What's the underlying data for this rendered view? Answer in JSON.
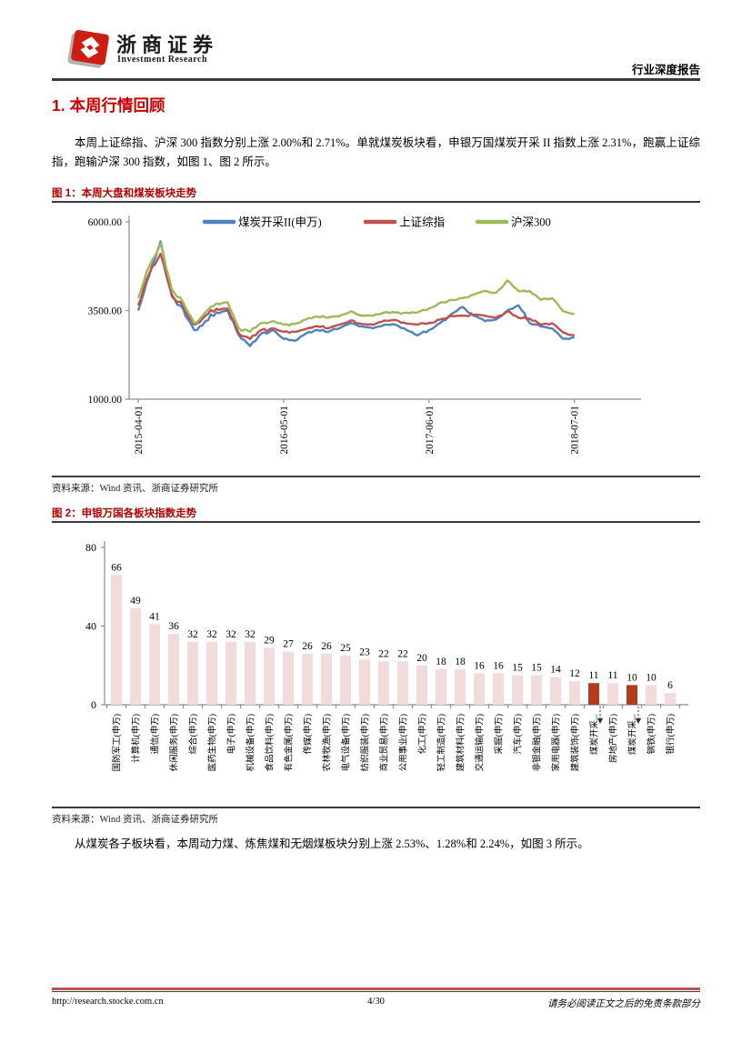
{
  "header": {
    "brand_cn": "浙商证券",
    "brand_en": "Investment Research",
    "report_type": "行业深度报告",
    "logo_color": "#ce1e14"
  },
  "section": {
    "title": "1. 本周行情回顾"
  },
  "paragraphs": {
    "p1": "本周上证综指、沪深 300 指数分别上涨 2.00%和 2.71%。单就煤炭板块看，申银万国煤炭开采 II 指数上涨 2.31%，跑赢上证综指，跑输沪深 300 指数，如图 1、图 2 所示。",
    "p2": "从煤炭各子板块看，本周动力煤、炼焦煤和无烟煤板块分别上涨 2.53%、1.28%和 2.24%，如图 3 所示。"
  },
  "figure1": {
    "caption": "图 1：本周大盘和煤炭板块走势",
    "source": "资料来源：Wind 资讯、浙商证券研究所",
    "chart_data": {
      "type": "line",
      "title": "本周大盘和煤炭板块走势",
      "ylim": [
        1000,
        6000
      ],
      "y_ticks": [
        6000,
        3500,
        1000
      ],
      "y_tick_labels": [
        "6000.00",
        "3500.00",
        "1000.00"
      ],
      "x_tick_labels": [
        "2015-04-01",
        "2016-05-01",
        "2017-06-01",
        "2018-07-01"
      ],
      "x_tick_month_index": [
        0,
        13,
        26,
        39
      ],
      "legend_position": "top",
      "grid": false,
      "x_months": [
        "2015-04",
        "2015-05",
        "2015-06",
        "2015-07",
        "2015-08",
        "2015-09",
        "2015-10",
        "2015-11",
        "2015-12",
        "2016-01",
        "2016-02",
        "2016-03",
        "2016-04",
        "2016-05",
        "2016-06",
        "2016-07",
        "2016-08",
        "2016-09",
        "2016-10",
        "2016-11",
        "2016-12",
        "2017-01",
        "2017-02",
        "2017-03",
        "2017-04",
        "2017-05",
        "2017-06",
        "2017-07",
        "2017-08",
        "2017-09",
        "2017-10",
        "2017-11",
        "2017-12",
        "2018-01",
        "2018-02",
        "2018-03",
        "2018-04",
        "2018-05",
        "2018-06",
        "2018-07"
      ],
      "series": [
        {
          "name": "煤炭开采II(申万)",
          "color": "#4F81BD",
          "values": [
            3500,
            4500,
            5450,
            3900,
            3550,
            2950,
            3200,
            3450,
            3500,
            2800,
            2500,
            2850,
            2950,
            2700,
            2650,
            2850,
            2950,
            2900,
            3000,
            3150,
            3050,
            3000,
            3100,
            3100,
            2950,
            2800,
            2950,
            3150,
            3400,
            3600,
            3350,
            3200,
            3250,
            3500,
            3650,
            3150,
            3050,
            3000,
            2700,
            2750
          ]
        },
        {
          "name": "上证综指",
          "color": "#C0504D",
          "values": [
            3650,
            4550,
            5100,
            3950,
            3650,
            3100,
            3350,
            3550,
            3550,
            2850,
            2700,
            2950,
            3000,
            2900,
            2900,
            2980,
            3060,
            3000,
            3100,
            3220,
            3120,
            3100,
            3220,
            3230,
            3130,
            3100,
            3150,
            3250,
            3350,
            3360,
            3380,
            3350,
            3300,
            3480,
            3300,
            3270,
            3100,
            3140,
            2880,
            2800
          ]
        },
        {
          "name": "沪深300",
          "color": "#9BBB59",
          "values": [
            3850,
            4750,
            5400,
            4100,
            3750,
            3150,
            3450,
            3700,
            3730,
            3000,
            2900,
            3150,
            3200,
            3100,
            3120,
            3250,
            3330,
            3300,
            3340,
            3480,
            3350,
            3350,
            3450,
            3440,
            3440,
            3450,
            3560,
            3720,
            3800,
            3850,
            3950,
            4050,
            4000,
            4350,
            4050,
            4050,
            3800,
            3850,
            3480,
            3400
          ]
        }
      ]
    }
  },
  "figure2": {
    "caption": "图 2：申银万国各板块指数走势",
    "source": "资料来源：Wind 资讯、浙商证券研究所",
    "chart_data": {
      "type": "bar",
      "ylim": [
        0,
        80
      ],
      "y_ticks": [
        80,
        40,
        0
      ],
      "y_tick_labels": [
        "80",
        "40",
        "0"
      ],
      "bar_color": "#F2DCDB",
      "highlight_color": "#B43C1C",
      "highlighted_indices": [
        25,
        27
      ],
      "categories": [
        "国防军工(申万)",
        "计算机(申万)",
        "通信(申万)",
        "休闲服务(申万)",
        "综合(申万)",
        "医药生物(申万)",
        "电子(申万)",
        "机械设备(申万)",
        "食品饮料(申万)",
        "有色金属(申万)",
        "传媒(申万)",
        "农林牧渔(申万)",
        "电气设备(申万)",
        "纺织服装(申万)",
        "商业贸易(申万)",
        "公用事业(申万)",
        "化工(申万)",
        "轻工制造(申万)",
        "建筑材料(申万)",
        "交通运输(申万)",
        "采掘(申万)",
        "汽车(申万)",
        "非银金融(申万)",
        "家用电器(申万)",
        "建筑装饰(申万)",
        "煤炭开采...",
        "房地产(申万)",
        "煤炭开采...",
        "钢铁(申万)",
        "银行(申万)"
      ],
      "values": [
        66,
        49,
        41,
        36,
        32,
        32,
        32,
        32,
        29,
        27,
        26,
        26,
        25,
        23,
        22,
        22,
        20,
        18,
        18,
        16,
        16,
        15,
        15,
        14,
        12,
        11,
        11,
        10,
        10,
        6
      ]
    }
  },
  "footer": {
    "url": "http://research.stocke.com.cn",
    "page": "4/30",
    "disclaimer": "请务必阅读正文之后的免责条款部分"
  },
  "colors": {
    "section_red": "#cc0000",
    "caption_red": "#b20000",
    "rule_dark": "#3b3b3b",
    "footer_line_red": "#c0504d",
    "axis_gray": "#8c8c8c"
  }
}
